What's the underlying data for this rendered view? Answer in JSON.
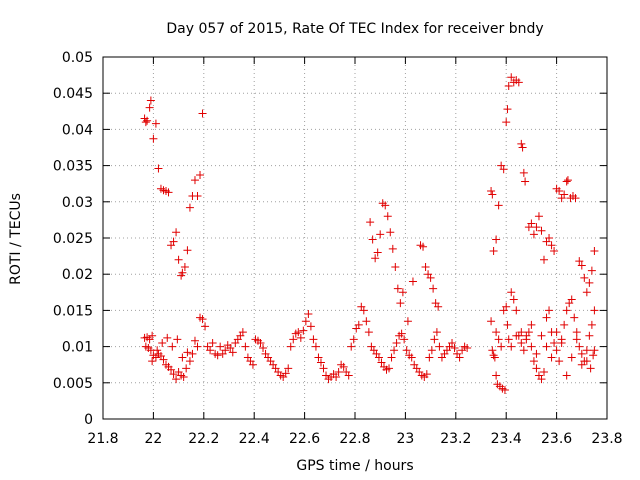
{
  "chart_data": {
    "type": "scatter",
    "title": "Day 057 of 2015, Rate Of TEC Index for receiver bndy",
    "xlabel": "GPS time / hours",
    "ylabel": "ROTI / TECUs",
    "xlim": [
      21.8,
      23.8
    ],
    "ylim": [
      0,
      0.05
    ],
    "grid": true,
    "marker": "+",
    "color": "#e00000",
    "xticks": [
      {
        "value": 21.8,
        "label": "21.8"
      },
      {
        "value": 22.0,
        "label": "22"
      },
      {
        "value": 22.2,
        "label": "22.2"
      },
      {
        "value": 22.4,
        "label": "22.4"
      },
      {
        "value": 22.6,
        "label": "22.6"
      },
      {
        "value": 22.8,
        "label": "22.8"
      },
      {
        "value": 23.0,
        "label": "23"
      },
      {
        "value": 23.2,
        "label": "23.2"
      },
      {
        "value": 23.4,
        "label": "23.4"
      },
      {
        "value": 23.6,
        "label": "23.6"
      },
      {
        "value": 23.8,
        "label": "23.8"
      }
    ],
    "yticks": [
      {
        "value": 0,
        "label": "0"
      },
      {
        "value": 0.005,
        "label": "0.005"
      },
      {
        "value": 0.01,
        "label": "0.01"
      },
      {
        "value": 0.015,
        "label": "0.015"
      },
      {
        "value": 0.02,
        "label": "0.02"
      },
      {
        "value": 0.025,
        "label": "0.025"
      },
      {
        "value": 0.03,
        "label": "0.03"
      },
      {
        "value": 0.035,
        "label": "0.035"
      },
      {
        "value": 0.04,
        "label": "0.04"
      },
      {
        "value": 0.045,
        "label": "0.045"
      },
      {
        "value": 0.05,
        "label": "0.05"
      }
    ],
    "points": [
      [
        21.965,
        0.0415
      ],
      [
        21.97,
        0.041
      ],
      [
        21.975,
        0.0412
      ],
      [
        21.985,
        0.043
      ],
      [
        21.99,
        0.044
      ],
      [
        22.0,
        0.0387
      ],
      [
        22.01,
        0.0408
      ],
      [
        22.02,
        0.0346
      ],
      [
        22.03,
        0.0318
      ],
      [
        22.04,
        0.0316
      ],
      [
        22.05,
        0.0315
      ],
      [
        22.06,
        0.0313
      ],
      [
        22.07,
        0.024
      ],
      [
        22.08,
        0.0245
      ],
      [
        22.09,
        0.0258
      ],
      [
        22.1,
        0.022
      ],
      [
        22.11,
        0.0198
      ],
      [
        22.115,
        0.0202
      ],
      [
        22.125,
        0.021
      ],
      [
        22.135,
        0.0233
      ],
      [
        22.145,
        0.0292
      ],
      [
        22.155,
        0.0308
      ],
      [
        22.165,
        0.033
      ],
      [
        22.175,
        0.0308
      ],
      [
        22.185,
        0.0337
      ],
      [
        22.195,
        0.0422
      ],
      [
        21.965,
        0.0112
      ],
      [
        21.975,
        0.0113
      ],
      [
        21.985,
        0.011
      ],
      [
        21.995,
        0.0115
      ],
      [
        21.97,
        0.01
      ],
      [
        21.98,
        0.0098
      ],
      [
        21.99,
        0.0095
      ],
      [
        22.0,
        0.0088
      ],
      [
        22.01,
        0.0085
      ],
      [
        22.02,
        0.009
      ],
      [
        22.03,
        0.0087
      ],
      [
        22.04,
        0.0082
      ],
      [
        22.05,
        0.0075
      ],
      [
        22.06,
        0.0072
      ],
      [
        22.07,
        0.0068
      ],
      [
        22.08,
        0.0062
      ],
      [
        22.09,
        0.0055
      ],
      [
        22.1,
        0.0065
      ],
      [
        22.11,
        0.006
      ],
      [
        22.12,
        0.0058
      ],
      [
        22.13,
        0.007
      ],
      [
        21.995,
        0.008
      ],
      [
        22.015,
        0.0095
      ],
      [
        22.035,
        0.0105
      ],
      [
        22.055,
        0.0112
      ],
      [
        22.075,
        0.01
      ],
      [
        22.095,
        0.011
      ],
      [
        22.115,
        0.0085
      ],
      [
        22.135,
        0.0092
      ],
      [
        22.145,
        0.008
      ],
      [
        22.155,
        0.009
      ],
      [
        22.165,
        0.0108
      ],
      [
        22.175,
        0.01
      ],
      [
        22.185,
        0.014
      ],
      [
        22.195,
        0.0138
      ],
      [
        22.205,
        0.0128
      ],
      [
        22.215,
        0.01
      ],
      [
        22.225,
        0.0095
      ],
      [
        22.235,
        0.0105
      ],
      [
        22.245,
        0.009
      ],
      [
        22.255,
        0.0088
      ],
      [
        22.265,
        0.01
      ],
      [
        22.275,
        0.009
      ],
      [
        22.285,
        0.0095
      ],
      [
        22.295,
        0.0102
      ],
      [
        22.305,
        0.0098
      ],
      [
        22.315,
        0.0092
      ],
      [
        22.325,
        0.0105
      ],
      [
        22.335,
        0.011
      ],
      [
        22.345,
        0.0115
      ],
      [
        22.355,
        0.012
      ],
      [
        22.365,
        0.01
      ],
      [
        22.375,
        0.0085
      ],
      [
        22.385,
        0.008
      ],
      [
        22.395,
        0.0075
      ],
      [
        22.405,
        0.011
      ],
      [
        22.415,
        0.0108
      ],
      [
        22.425,
        0.0105
      ],
      [
        22.435,
        0.0098
      ],
      [
        22.445,
        0.009
      ],
      [
        22.455,
        0.0085
      ],
      [
        22.465,
        0.008
      ],
      [
        22.475,
        0.0075
      ],
      [
        22.485,
        0.007
      ],
      [
        22.495,
        0.0065
      ],
      [
        22.505,
        0.006
      ],
      [
        22.515,
        0.0058
      ],
      [
        22.525,
        0.0063
      ],
      [
        22.535,
        0.007
      ],
      [
        22.545,
        0.01
      ],
      [
        22.555,
        0.011
      ],
      [
        22.565,
        0.0118
      ],
      [
        22.575,
        0.012
      ],
      [
        22.585,
        0.0112
      ],
      [
        22.595,
        0.0122
      ],
      [
        22.605,
        0.0135
      ],
      [
        22.615,
        0.0145
      ],
      [
        22.625,
        0.0128
      ],
      [
        22.635,
        0.011
      ],
      [
        22.645,
        0.01
      ],
      [
        22.655,
        0.0085
      ],
      [
        22.665,
        0.0078
      ],
      [
        22.675,
        0.007
      ],
      [
        22.685,
        0.006
      ],
      [
        22.695,
        0.0055
      ],
      [
        22.705,
        0.0058
      ],
      [
        22.715,
        0.0062
      ],
      [
        22.725,
        0.0058
      ],
      [
        22.735,
        0.0065
      ],
      [
        22.745,
        0.0075
      ],
      [
        22.755,
        0.0072
      ],
      [
        22.765,
        0.0065
      ],
      [
        22.775,
        0.006
      ],
      [
        22.785,
        0.01
      ],
      [
        22.795,
        0.011
      ],
      [
        22.805,
        0.0125
      ],
      [
        22.815,
        0.013
      ],
      [
        22.825,
        0.0155
      ],
      [
        22.835,
        0.015
      ],
      [
        22.845,
        0.0135
      ],
      [
        22.855,
        0.012
      ],
      [
        22.865,
        0.01
      ],
      [
        22.875,
        0.0095
      ],
      [
        22.885,
        0.009
      ],
      [
        22.895,
        0.0085
      ],
      [
        22.905,
        0.0078
      ],
      [
        22.915,
        0.0072
      ],
      [
        22.925,
        0.0068
      ],
      [
        22.935,
        0.007
      ],
      [
        22.945,
        0.0085
      ],
      [
        22.955,
        0.0095
      ],
      [
        22.965,
        0.0105
      ],
      [
        22.975,
        0.0115
      ],
      [
        22.985,
        0.0118
      ],
      [
        22.995,
        0.011
      ],
      [
        23.005,
        0.0095
      ],
      [
        23.015,
        0.0088
      ],
      [
        23.025,
        0.0085
      ],
      [
        23.035,
        0.0075
      ],
      [
        23.045,
        0.007
      ],
      [
        23.055,
        0.0065
      ],
      [
        23.065,
        0.006
      ],
      [
        23.075,
        0.0058
      ],
      [
        23.085,
        0.0062
      ],
      [
        23.095,
        0.0085
      ],
      [
        23.105,
        0.0095
      ],
      [
        23.115,
        0.011
      ],
      [
        23.125,
        0.012
      ],
      [
        23.135,
        0.01
      ],
      [
        23.145,
        0.0085
      ],
      [
        23.155,
        0.009
      ],
      [
        23.165,
        0.0095
      ],
      [
        23.175,
        0.01
      ],
      [
        23.185,
        0.0105
      ],
      [
        23.195,
        0.0098
      ],
      [
        23.205,
        0.009
      ],
      [
        23.215,
        0.0085
      ],
      [
        23.225,
        0.0095
      ],
      [
        23.235,
        0.01
      ],
      [
        23.245,
        0.0098
      ],
      [
        22.86,
        0.0272
      ],
      [
        22.87,
        0.0248
      ],
      [
        22.88,
        0.0222
      ],
      [
        22.89,
        0.023
      ],
      [
        22.9,
        0.0255
      ],
      [
        22.91,
        0.0298
      ],
      [
        22.92,
        0.0295
      ],
      [
        22.93,
        0.028
      ],
      [
        22.94,
        0.0258
      ],
      [
        22.95,
        0.0235
      ],
      [
        22.96,
        0.021
      ],
      [
        22.97,
        0.018
      ],
      [
        22.98,
        0.016
      ],
      [
        22.99,
        0.0175
      ],
      [
        23.01,
        0.0135
      ],
      [
        23.03,
        0.019
      ],
      [
        23.06,
        0.024
      ],
      [
        23.07,
        0.0238
      ],
      [
        23.08,
        0.021
      ],
      [
        23.09,
        0.02
      ],
      [
        23.1,
        0.0195
      ],
      [
        23.11,
        0.018
      ],
      [
        23.12,
        0.016
      ],
      [
        23.13,
        0.0155
      ],
      [
        23.34,
        0.0315
      ],
      [
        23.345,
        0.031
      ],
      [
        23.35,
        0.0232
      ],
      [
        23.36,
        0.0248
      ],
      [
        23.37,
        0.0295
      ],
      [
        23.38,
        0.035
      ],
      [
        23.39,
        0.0345
      ],
      [
        23.4,
        0.041
      ],
      [
        23.405,
        0.0428
      ],
      [
        23.41,
        0.046
      ],
      [
        23.42,
        0.0472
      ],
      [
        23.43,
        0.0465
      ],
      [
        23.44,
        0.0468
      ],
      [
        23.45,
        0.0465
      ],
      [
        23.46,
        0.038
      ],
      [
        23.465,
        0.0375
      ],
      [
        23.47,
        0.034
      ],
      [
        23.475,
        0.0328
      ],
      [
        23.49,
        0.0265
      ],
      [
        23.5,
        0.027
      ],
      [
        23.51,
        0.0255
      ],
      [
        23.52,
        0.0265
      ],
      [
        23.53,
        0.028
      ],
      [
        23.54,
        0.026
      ],
      [
        23.55,
        0.022
      ],
      [
        23.56,
        0.0245
      ],
      [
        23.57,
        0.025
      ],
      [
        23.58,
        0.024
      ],
      [
        23.59,
        0.0232
      ],
      [
        23.6,
        0.0318
      ],
      [
        23.61,
        0.0315
      ],
      [
        23.62,
        0.0305
      ],
      [
        23.63,
        0.031
      ],
      [
        23.64,
        0.0328
      ],
      [
        23.645,
        0.033
      ],
      [
        23.655,
        0.0305
      ],
      [
        23.665,
        0.0308
      ],
      [
        23.675,
        0.0305
      ],
      [
        23.69,
        0.0218
      ],
      [
        23.7,
        0.0212
      ],
      [
        23.71,
        0.0195
      ],
      [
        23.72,
        0.0175
      ],
      [
        23.73,
        0.0188
      ],
      [
        23.74,
        0.0205
      ],
      [
        23.75,
        0.0232
      ],
      [
        23.34,
        0.0135
      ],
      [
        23.345,
        0.0095
      ],
      [
        23.35,
        0.0088
      ],
      [
        23.355,
        0.0085
      ],
      [
        23.36,
        0.006
      ],
      [
        23.365,
        0.0048
      ],
      [
        23.375,
        0.0045
      ],
      [
        23.385,
        0.0042
      ],
      [
        23.395,
        0.004
      ],
      [
        23.36,
        0.012
      ],
      [
        23.37,
        0.011
      ],
      [
        23.38,
        0.01
      ],
      [
        23.39,
        0.015
      ],
      [
        23.4,
        0.0155
      ],
      [
        23.405,
        0.013
      ],
      [
        23.41,
        0.011
      ],
      [
        23.42,
        0.0175
      ],
      [
        23.43,
        0.0165
      ],
      [
        23.44,
        0.015
      ],
      [
        23.45,
        0.0115
      ],
      [
        23.46,
        0.0105
      ],
      [
        23.47,
        0.0095
      ],
      [
        23.48,
        0.0115
      ],
      [
        23.49,
        0.012
      ],
      [
        23.5,
        0.013
      ],
      [
        23.51,
        0.008
      ],
      [
        23.52,
        0.007
      ],
      [
        23.53,
        0.006
      ],
      [
        23.54,
        0.0055
      ],
      [
        23.55,
        0.0065
      ],
      [
        23.56,
        0.014
      ],
      [
        23.57,
        0.015
      ],
      [
        23.58,
        0.012
      ],
      [
        23.59,
        0.0105
      ],
      [
        23.6,
        0.0095
      ],
      [
        23.61,
        0.008
      ],
      [
        23.62,
        0.011
      ],
      [
        23.63,
        0.013
      ],
      [
        23.64,
        0.015
      ],
      [
        23.65,
        0.016
      ],
      [
        23.66,
        0.0165
      ],
      [
        23.67,
        0.014
      ],
      [
        23.68,
        0.012
      ],
      [
        23.69,
        0.01
      ],
      [
        23.7,
        0.0075
      ],
      [
        23.71,
        0.008
      ],
      [
        23.72,
        0.0095
      ],
      [
        23.73,
        0.0115
      ],
      [
        23.74,
        0.013
      ],
      [
        23.75,
        0.015
      ],
      [
        23.42,
        0.01
      ],
      [
        23.44,
        0.0115
      ],
      [
        23.46,
        0.012
      ],
      [
        23.48,
        0.011
      ],
      [
        23.5,
        0.01
      ],
      [
        23.52,
        0.009
      ],
      [
        23.54,
        0.0115
      ],
      [
        23.56,
        0.01
      ],
      [
        23.58,
        0.0085
      ],
      [
        23.6,
        0.012
      ],
      [
        23.62,
        0.0105
      ],
      [
        23.64,
        0.006
      ],
      [
        23.66,
        0.0085
      ],
      [
        23.68,
        0.011
      ],
      [
        23.7,
        0.009
      ],
      [
        23.72,
        0.008
      ],
      [
        23.735,
        0.007
      ],
      [
        23.745,
        0.0088
      ],
      [
        23.75,
        0.0095
      ]
    ]
  }
}
